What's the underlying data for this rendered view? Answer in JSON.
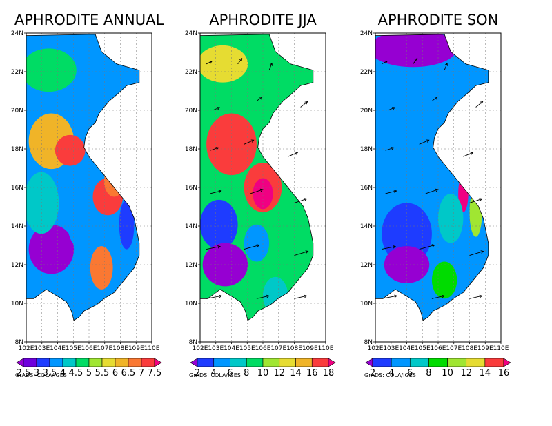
{
  "panels": [
    {
      "title": "APHRODITE ANNUAL",
      "lat_labels": [
        "24N",
        "22N",
        "20N",
        "18N",
        "16N",
        "14N",
        "12N",
        "10N",
        "8N"
      ],
      "lon_labels": [
        "102E",
        "103E",
        "104E",
        "105E",
        "106E",
        "107E",
        "108E",
        "109E",
        "110E"
      ],
      "colorbar_labels": [
        "2.5",
        "3",
        "3.5",
        "4",
        "4.5",
        "5",
        "5.5",
        "6",
        "6.5",
        "7",
        "7.5"
      ],
      "colorbar_colors": [
        "#9600d2",
        "#6e00dc",
        "#1e3cff",
        "#0096ff",
        "#00c8c8",
        "#00dc64",
        "#a0e632",
        "#e6dc32",
        "#f0b428",
        "#fa7832",
        "#fa3c3c",
        "#f00082"
      ],
      "credit": "GrADS: COLA/IGES",
      "has_wind_arrows": false
    },
    {
      "title": "APHRODITE JJA",
      "lat_labels": [
        "24N",
        "22N",
        "20N",
        "18N",
        "16N",
        "14N",
        "12N",
        "10N",
        "8N"
      ],
      "lon_labels": [
        "102E",
        "103E",
        "104E",
        "105E",
        "106E",
        "107E",
        "108E",
        "109E",
        "110E"
      ],
      "colorbar_labels": [
        "2",
        "4",
        "6",
        "8",
        "10",
        "12",
        "14",
        "16",
        "18"
      ],
      "colorbar_colors": [
        "#9600d2",
        "#1e3cff",
        "#0096ff",
        "#00c8c8",
        "#00dc64",
        "#a0e632",
        "#e6dc32",
        "#f0b428",
        "#fa3c3c",
        "#f00082"
      ],
      "credit": "GrADS: COLA/IGES",
      "has_wind_arrows": true
    },
    {
      "title": "APHRODITE SON",
      "lat_labels": [
        "24N",
        "22N",
        "20N",
        "18N",
        "16N",
        "14N",
        "12N",
        "10N",
        "8N"
      ],
      "lon_labels": [
        "102E",
        "103E",
        "104E",
        "105E",
        "106E",
        "107E",
        "108E",
        "109E",
        "110E"
      ],
      "colorbar_labels": [
        "2",
        "4",
        "6",
        "8",
        "10",
        "12",
        "14",
        "16"
      ],
      "colorbar_colors": [
        "#9600d2",
        "#1e3cff",
        "#0096ff",
        "#00c8c8",
        "#00dc00",
        "#a0e632",
        "#e6dc32",
        "#fa3c3c",
        "#f00082"
      ],
      "credit": "GrADS: COLA/IGES",
      "has_wind_arrows": true
    }
  ]
}
